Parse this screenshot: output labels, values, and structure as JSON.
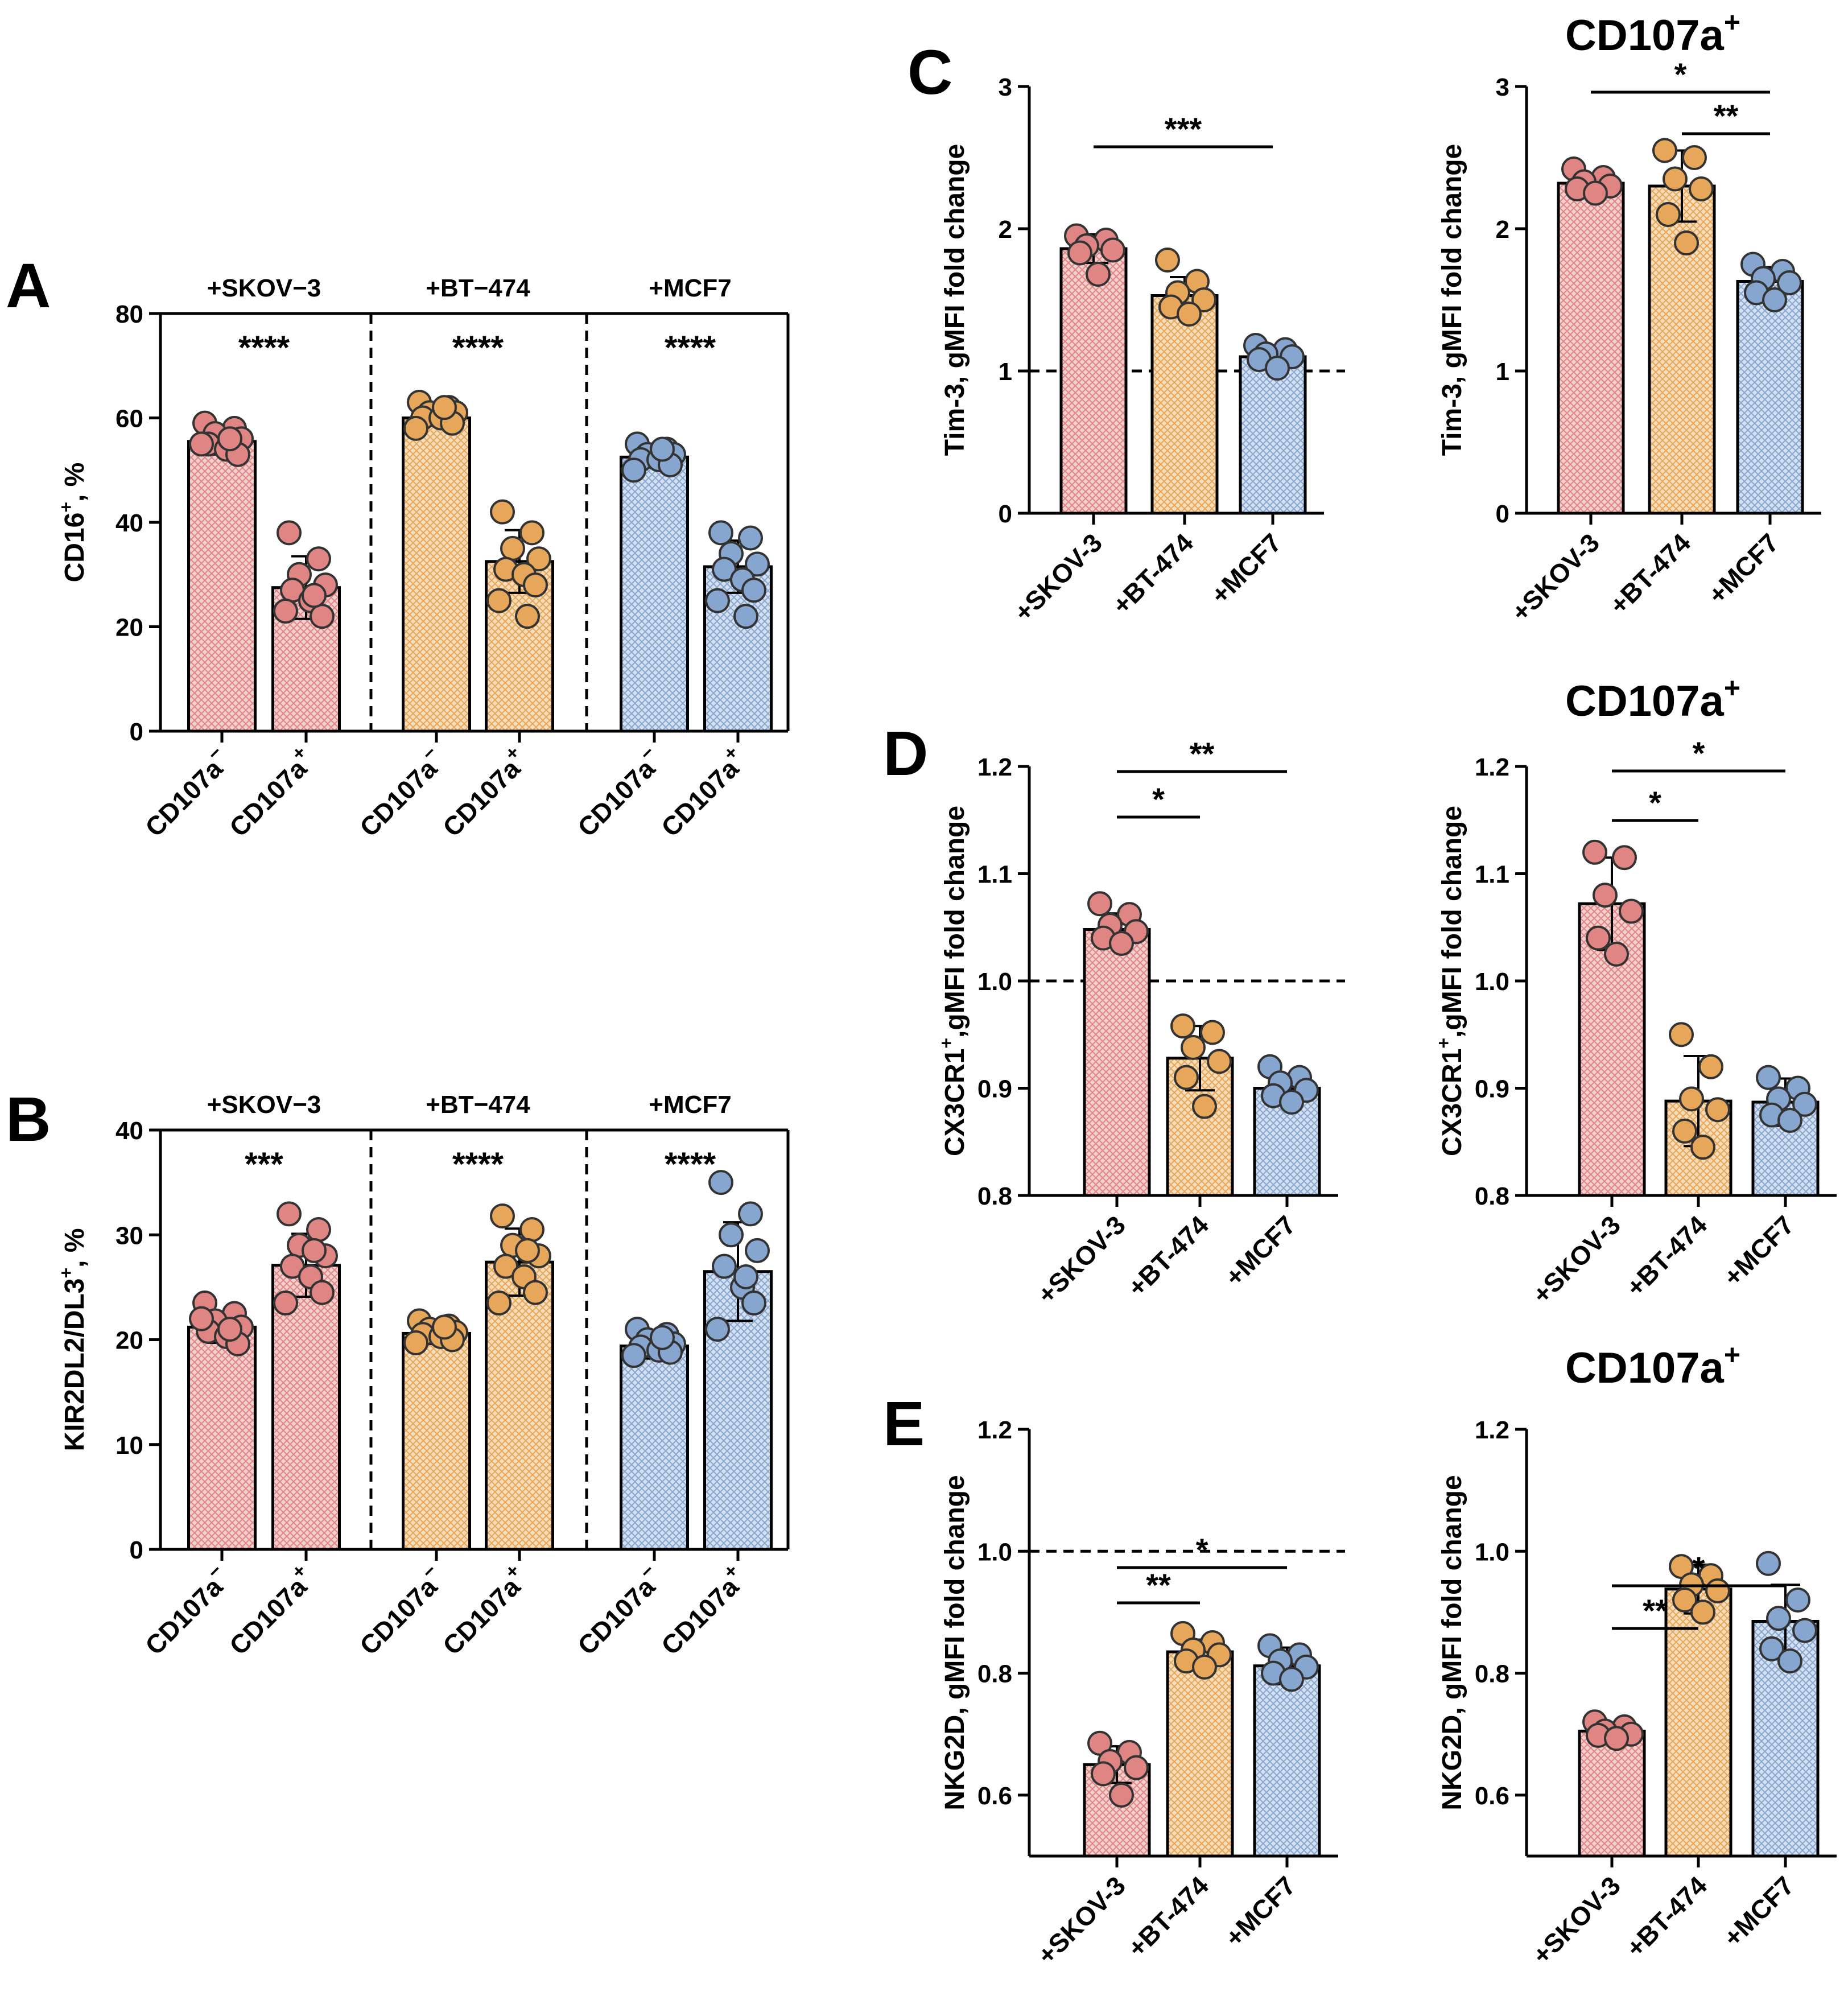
{
  "colors": {
    "skov": "#df8583",
    "bt": "#e7a75a",
    "mcf": "#86a6d0",
    "skov_fill": "#f3cfcd",
    "bt_fill": "#f5ddb9",
    "mcf_fill": "#d4e0f0"
  },
  "chart_data": [
    {
      "id": "A",
      "type": "bar",
      "panel_letter": "A",
      "title": "",
      "ylabel": "CD16",
      "ylabel_sup": "+",
      "ylabel_suffix": ", %",
      "ylim": [
        0,
        80
      ],
      "yticks": [
        "0",
        "20",
        "40",
        "60",
        "80"
      ],
      "groups": [
        "+SKOV−3",
        "+BT−474",
        "+MCF7"
      ],
      "categories": [
        "CD107a",
        "CD107a",
        "CD107a",
        "CD107a",
        "CD107a",
        "CD107a"
      ],
      "category_sups": [
        "−",
        "+",
        "−",
        "+",
        "−",
        "+"
      ],
      "colors": [
        "skov",
        "skov",
        "bt",
        "bt",
        "mcf",
        "mcf"
      ],
      "values": [
        55.5,
        27.5,
        60,
        32.5,
        52.5,
        31.5
      ],
      "errors": [
        2.5,
        6,
        1.5,
        6,
        2,
        5
      ],
      "points": [
        [
          59,
          58,
          57,
          56,
          55,
          54,
          53,
          55,
          56
        ],
        [
          38,
          33,
          30,
          28,
          27,
          25,
          22,
          23,
          26
        ],
        [
          63,
          62,
          61,
          61,
          60,
          60,
          59,
          58,
          62
        ],
        [
          42,
          38,
          35,
          33,
          31,
          30,
          28,
          25,
          22
        ],
        [
          55,
          54,
          53,
          53,
          52,
          52,
          51,
          50,
          54
        ],
        [
          38,
          37,
          34,
          32,
          31,
          29,
          27,
          25,
          22
        ]
      ],
      "group_stats": [
        "****",
        "****",
        "****"
      ]
    },
    {
      "id": "B",
      "type": "bar",
      "panel_letter": "B",
      "title": "",
      "ylabel": "KIR2DL2/DL3",
      "ylabel_sup": "+",
      "ylabel_suffix": ", %",
      "ylim": [
        0,
        40
      ],
      "yticks": [
        "0",
        "10",
        "20",
        "30",
        "40"
      ],
      "groups": [
        "+SKOV−3",
        "+BT−474",
        "+MCF7"
      ],
      "categories": [
        "CD107a",
        "CD107a",
        "CD107a",
        "CD107a",
        "CD107a",
        "CD107a"
      ],
      "category_sups": [
        "−",
        "+",
        "−",
        "+",
        "−",
        "+"
      ],
      "colors": [
        "skov",
        "skov",
        "bt",
        "bt",
        "mcf",
        "mcf"
      ],
      "values": [
        21.2,
        27.1,
        20.6,
        27.4,
        19.4,
        26.5
      ],
      "errors": [
        1.5,
        3,
        1,
        3.2,
        1.2,
        4.7
      ],
      "points": [
        [
          23.5,
          22.5,
          21.8,
          21.2,
          20.8,
          20.3,
          19.6,
          22,
          21
        ],
        [
          32,
          30.5,
          29,
          28,
          27,
          26,
          24.5,
          23.5,
          28.5
        ],
        [
          21.8,
          21.3,
          21,
          20.7,
          20.5,
          20.3,
          20,
          19.7,
          21.2
        ],
        [
          31.8,
          30.5,
          29,
          28,
          27,
          26,
          24.5,
          23.5,
          28.5
        ],
        [
          21,
          20.5,
          20,
          19.6,
          19.3,
          19,
          18.8,
          18.5,
          20.2
        ],
        [
          35,
          32,
          30,
          28.5,
          27,
          25,
          23.5,
          21,
          26
        ]
      ],
      "group_stats": [
        "***",
        "****",
        "****"
      ]
    },
    {
      "id": "C1",
      "type": "bar",
      "panel_letter": "C",
      "title": "",
      "ylabel": "Tim-3, gMFI fold change",
      "ylim": [
        0,
        3
      ],
      "yticks": [
        "0",
        "1",
        "2",
        "3"
      ],
      "categories": [
        "+SKOV-3",
        "+BT-474",
        "+MCF7"
      ],
      "colors": [
        "skov",
        "bt",
        "mcf"
      ],
      "values": [
        1.86,
        1.53,
        1.1
      ],
      "errors": [
        0.1,
        0.13,
        0.06
      ],
      "points": [
        [
          1.95,
          1.92,
          1.88,
          1.85,
          1.83,
          1.68
        ],
        [
          1.78,
          1.63,
          1.55,
          1.5,
          1.45,
          1.4
        ],
        [
          1.18,
          1.15,
          1.12,
          1.1,
          1.08,
          1.02
        ]
      ],
      "reference_line": 1.0,
      "brackets": [
        {
          "from": 0,
          "to": 2,
          "label": "***"
        }
      ]
    },
    {
      "id": "C2",
      "type": "bar",
      "panel_letter": "",
      "title": "CD107a",
      "title_sup": "+",
      "ylabel": "Tim-3, gMFI fold change",
      "ylim": [
        0,
        3
      ],
      "yticks": [
        "0",
        "1",
        "2",
        "3"
      ],
      "categories": [
        "+SKOV-3",
        "+BT-474",
        "+MCF7"
      ],
      "colors": [
        "skov",
        "bt",
        "mcf"
      ],
      "values": [
        2.32,
        2.3,
        1.63
      ],
      "errors": [
        0.05,
        0.25,
        0.1
      ],
      "points": [
        [
          2.42,
          2.36,
          2.33,
          2.3,
          2.28,
          2.25
        ],
        [
          2.55,
          2.5,
          2.35,
          2.28,
          2.1,
          1.9
        ],
        [
          1.75,
          1.7,
          1.65,
          1.62,
          1.55,
          1.5
        ]
      ],
      "reference_line": null,
      "brackets": [
        {
          "from": 0,
          "to": 2,
          "label": "*"
        },
        {
          "from": 1,
          "to": 2,
          "label": "**"
        }
      ]
    },
    {
      "id": "D1",
      "type": "bar",
      "panel_letter": "D",
      "title": "",
      "ylabel": "CX3CR1",
      "ylabel_sup": "+",
      "ylabel_suffix": ",gMFI fold change",
      "ylim": [
        0.8,
        1.2
      ],
      "yticks": [
        "0.8",
        "0.9",
        "1.0",
        "1.1",
        "1.2"
      ],
      "categories": [
        "+SKOV-3",
        "+BT-474",
        "+MCF7"
      ],
      "colors": [
        "skov",
        "bt",
        "mcf"
      ],
      "values": [
        1.048,
        0.928,
        0.9
      ],
      "errors": [
        0.015,
        0.03,
        0.01
      ],
      "points": [
        [
          1.072,
          1.062,
          1.052,
          1.046,
          1.04,
          1.035
        ],
        [
          0.958,
          0.952,
          0.938,
          0.925,
          0.91,
          0.883
        ],
        [
          0.92,
          0.91,
          0.905,
          0.898,
          0.893,
          0.887
        ]
      ],
      "reference_line": 1.0,
      "brackets": [
        {
          "from": 0,
          "to": 1,
          "label": "*"
        },
        {
          "from": 0,
          "to": 2,
          "label": "**"
        }
      ]
    },
    {
      "id": "D2",
      "type": "bar",
      "panel_letter": "",
      "title": "CD107a",
      "title_sup": "+",
      "ylabel": "CX3CR1",
      "ylabel_sup": "+",
      "ylabel_suffix": ",gMFI fold change",
      "ylim": [
        0.8,
        1.2
      ],
      "yticks": [
        "0.8",
        "0.9",
        "1.0",
        "1.1",
        "1.2"
      ],
      "categories": [
        "+SKOV-3",
        "+BT-474",
        "+MCF7"
      ],
      "colors": [
        "skov",
        "bt",
        "mcf"
      ],
      "values": [
        1.072,
        0.888,
        0.887
      ],
      "errors": [
        0.043,
        0.042,
        0.022
      ],
      "points": [
        [
          1.12,
          1.115,
          1.08,
          1.065,
          1.04,
          1.025
        ],
        [
          0.95,
          0.92,
          0.89,
          0.88,
          0.86,
          0.845
        ],
        [
          0.91,
          0.9,
          0.89,
          0.885,
          0.875,
          0.87
        ]
      ],
      "reference_line": null,
      "brackets": [
        {
          "from": 0,
          "to": 1,
          "label": "*"
        },
        {
          "from": 0,
          "to": 2,
          "label": "*"
        }
      ]
    },
    {
      "id": "E1",
      "type": "bar",
      "panel_letter": "E",
      "title": "",
      "ylabel": "NKG2D, gMFI fold change",
      "ylim": [
        0.5,
        1.2
      ],
      "yticks": [
        "0.6",
        "0.8",
        "1.0",
        "1.2"
      ],
      "categories": [
        "+SKOV-3",
        "+BT-474",
        "+MCF7"
      ],
      "colors": [
        "skov",
        "bt",
        "mcf"
      ],
      "values": [
        0.65,
        0.835,
        0.812
      ],
      "errors": [
        0.03,
        0.02,
        0.03
      ],
      "points": [
        [
          0.685,
          0.67,
          0.655,
          0.645,
          0.635,
          0.6
        ],
        [
          0.865,
          0.85,
          0.838,
          0.83,
          0.82,
          0.81
        ],
        [
          0.845,
          0.83,
          0.82,
          0.81,
          0.8,
          0.79
        ]
      ],
      "reference_line": 1.0,
      "brackets": [
        {
          "from": 0,
          "to": 1,
          "label": "**"
        },
        {
          "from": 0,
          "to": 2,
          "label": "*"
        }
      ]
    },
    {
      "id": "E2",
      "type": "bar",
      "panel_letter": "",
      "title": "CD107a",
      "title_sup": "+",
      "ylabel": "NKG2D, gMFI fold change",
      "ylim": [
        0.5,
        1.2
      ],
      "yticks": [
        "0.6",
        "0.8",
        "1.0",
        "1.2"
      ],
      "categories": [
        "+SKOV-3",
        "+BT-474",
        "+MCF7"
      ],
      "colors": [
        "skov",
        "bt",
        "mcf"
      ],
      "values": [
        0.705,
        0.938,
        0.885
      ],
      "errors": [
        0.008,
        0.04,
        0.06
      ],
      "points": [
        [
          0.72,
          0.712,
          0.705,
          0.7,
          0.698,
          0.693
        ],
        [
          0.975,
          0.96,
          0.945,
          0.935,
          0.92,
          0.9
        ],
        [
          0.98,
          0.92,
          0.89,
          0.87,
          0.84,
          0.82
        ]
      ],
      "reference_line": null,
      "brackets": [
        {
          "from": 0,
          "to": 1,
          "label": "**"
        },
        {
          "from": 0,
          "to": 2,
          "label": "*"
        }
      ]
    }
  ]
}
